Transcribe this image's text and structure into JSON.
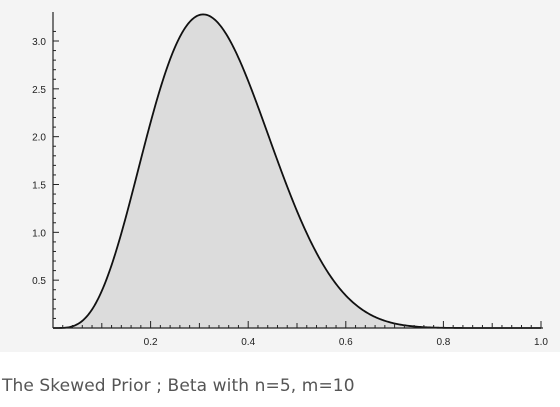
{
  "caption": "The Skewed Prior ; Beta with n=5, m=10",
  "colors": {
    "curve": "#111111",
    "fill": "#dcdcdc",
    "axis": "#222222",
    "background": "#f4f4f4"
  },
  "chart_data": {
    "type": "area",
    "title": "",
    "xlabel": "",
    "ylabel": "",
    "xlim": [
      0,
      1.0
    ],
    "ylim": [
      0,
      3.3
    ],
    "x_ticks": [
      0.2,
      0.4,
      0.6,
      0.8,
      1.0
    ],
    "x_tick_labels": [
      "0.2",
      "0.4",
      "0.6",
      "0.8",
      "1.0"
    ],
    "y_ticks": [
      0.5,
      1.0,
      1.5,
      2.0,
      2.5,
      3.0
    ],
    "y_tick_labels": [
      "0.5",
      "1.0",
      "1.5",
      "2.0",
      "2.5",
      "3.0"
    ],
    "grid": false,
    "series": [
      {
        "x": [
          0.0,
          0.05,
          0.1,
          0.15,
          0.2,
          0.25,
          0.3,
          0.35,
          0.4,
          0.45,
          0.5,
          0.55,
          0.6,
          0.65,
          0.7,
          0.75,
          0.8,
          0.85,
          0.9,
          0.95,
          1.0
        ],
        "y": [
          0.0,
          0.06,
          0.45,
          1.28,
          2.25,
          2.95,
          3.21,
          3.01,
          2.47,
          1.79,
          1.15,
          0.66,
          0.33,
          0.15,
          0.05,
          0.02,
          0.0,
          0.0,
          0.0,
          0.0,
          0.0
        ]
      }
    ]
  }
}
